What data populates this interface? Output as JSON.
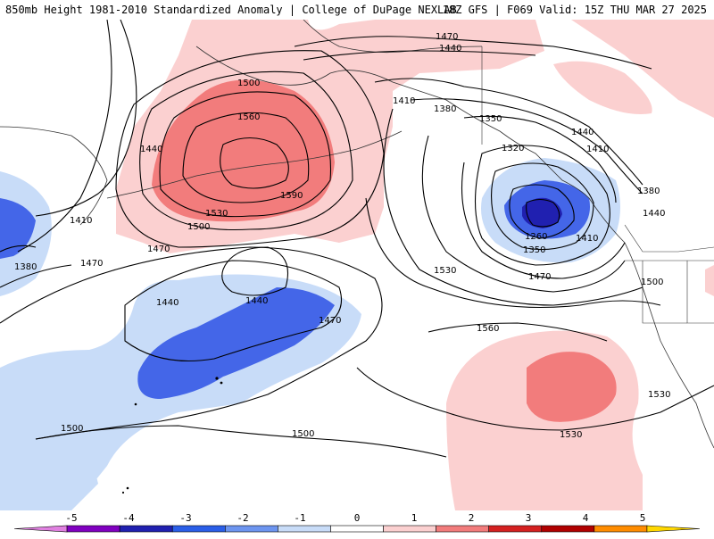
{
  "header": {
    "left": "850mb Height 1981-2010 Standardized Anomaly | College of DuPage NEXLAB",
    "right": "18Z GFS | F069 Valid: 15Z THU MAR 27 2025"
  },
  "colorbar": {
    "ticks": [
      "-5",
      "-4",
      "-3",
      "-2",
      "-1",
      "0",
      "1",
      "2",
      "3",
      "4",
      "5"
    ],
    "colors": [
      "#e080e0",
      "#8000c0",
      "#2020b0",
      "#2a5ee8",
      "#6d95f0",
      "#c8dcf8",
      "#ffffff",
      "#fbd0d0",
      "#f27c7c",
      "#d42020",
      "#b00000",
      "#ff8c00",
      "#ffd700"
    ]
  },
  "contour_labels": {
    "c1470_top": "1470",
    "c1440_top": "1440",
    "c1500_ridge": "1500",
    "c1560_ridge": "1560",
    "c1590_ridge": "1590",
    "c1530_ridge": "1530",
    "c1500_ridge_b": "1500",
    "c1440_west": "1440",
    "c1410_west": "1410",
    "c1470_mid": "1470",
    "c1380_west": "1380",
    "c1470_left": "1470",
    "c1440_trough": "1440",
    "c1440_trough_b": "1440",
    "c1470_trough": "1470",
    "c1500_sw": "1500",
    "c1500_s": "1500",
    "c1410_gulf": "1410",
    "c1380_gulf": "1380",
    "c1350_gulf": "1350",
    "c1320_gulf": "1320",
    "c1260_low": "1260",
    "c1350_low": "1350",
    "c1410_low": "1410",
    "c1470_low": "1470",
    "c1530_mid": "1530",
    "c1440_e": "1440",
    "c1410_e": "1410",
    "c1380_e": "1380",
    "c1440_e2": "1440",
    "c1500_e": "1500",
    "c1560_sub": "1560",
    "c1530_sub": "1530",
    "c1530_se": "1530"
  }
}
